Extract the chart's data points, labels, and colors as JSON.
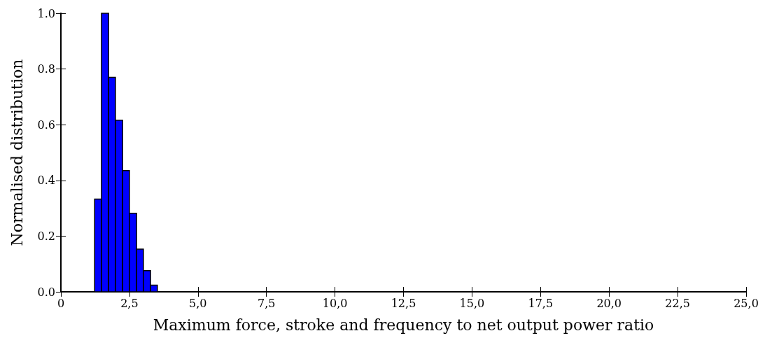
{
  "chart_data": {
    "type": "histogram",
    "xlabel": "Maximum force, stroke and frequency to net output power ratio",
    "ylabel": "Normalised distribution",
    "bins": [
      1.23,
      1.48,
      1.74,
      1.99,
      2.25,
      2.5,
      2.76,
      3.01,
      3.27,
      3.52
    ],
    "values": [
      0.333,
      1.0,
      0.77,
      0.616,
      0.435,
      0.282,
      0.153,
      0.076,
      0.024
    ],
    "color": "#0000ff",
    "xlim": [
      0,
      25
    ],
    "xticks": [
      0,
      {
        "value": 2.5,
        "label": "2,5"
      },
      {
        "value": 5,
        "label": "5,0"
      },
      {
        "value": 7.5,
        "label": "7,5"
      },
      {
        "value": 10,
        "label": "10,0"
      },
      {
        "value": 12.5,
        "label": "12,5"
      },
      {
        "value": 15,
        "label": "15,0"
      },
      {
        "value": 17.5,
        "label": "17,5"
      },
      {
        "value": 20,
        "label": "20,0"
      },
      {
        "value": 22.5,
        "label": "22,5"
      },
      {
        "value": 25,
        "label": "25,0"
      }
    ],
    "ylim": [
      0,
      1
    ],
    "yticks": [
      {
        "value": 0,
        "label": "0.0"
      },
      0.2,
      0.4,
      0.6,
      0.8,
      {
        "value": 1,
        "label": "1.0"
      }
    ],
    "grid": false
  }
}
